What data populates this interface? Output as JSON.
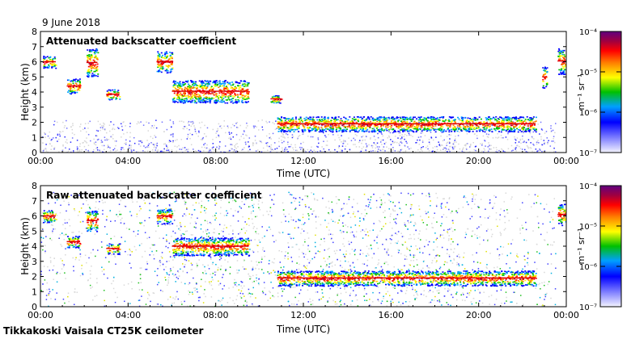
{
  "date_label": "9 June 2018",
  "footer": "Tikkakoski Vaisala CT25K ceilometer",
  "colorbar_unit": "m⁻¹ sr⁻¹",
  "colorbar_ticks": [
    "10⁻⁴",
    "10⁻⁵",
    "10⁻⁶",
    "10⁻⁷"
  ],
  "chart_data": [
    {
      "type": "heatmap",
      "title": "Attenuated backscatter coefficient",
      "xlabel": "Time (UTC)",
      "ylabel": "Height (km)",
      "xlim": [
        0,
        24
      ],
      "ylim": [
        0,
        8
      ],
      "x_ticks": [
        "00:00",
        "04:00",
        "08:00",
        "12:00",
        "16:00",
        "20:00",
        "00:00"
      ],
      "y_ticks": [
        "0",
        "1",
        "2",
        "3",
        "4",
        "5",
        "6",
        "7",
        "8"
      ],
      "colorbar_range": [
        1e-07,
        0.0001
      ],
      "colorbar_scale": "log",
      "layers": [
        {
          "x": [
            0.1,
            0.7
          ],
          "y": [
            5.6,
            6.4
          ]
        },
        {
          "x": [
            1.2,
            1.8
          ],
          "y": [
            3.9,
            4.9
          ]
        },
        {
          "x": [
            2.1,
            2.6
          ],
          "y": [
            5.0,
            6.9
          ]
        },
        {
          "x": [
            3.0,
            3.6
          ],
          "y": [
            3.5,
            4.2
          ]
        },
        {
          "x": [
            5.3,
            6.0
          ],
          "y": [
            5.3,
            6.7
          ]
        },
        {
          "x": [
            6.0,
            9.5
          ],
          "y": [
            3.3,
            4.8
          ]
        },
        {
          "x": [
            10.5,
            11.0
          ],
          "y": [
            3.3,
            3.8
          ]
        },
        {
          "x": [
            10.8,
            22.6
          ],
          "y": [
            1.4,
            2.4
          ]
        },
        {
          "x": [
            22.9,
            23.1
          ],
          "y": [
            4.3,
            5.7
          ]
        },
        {
          "x": [
            23.6,
            24.0
          ],
          "y": [
            5.2,
            6.9
          ]
        }
      ]
    },
    {
      "type": "heatmap",
      "title": "Raw attenuated backscatter coefficient",
      "xlabel": "Time (UTC)",
      "ylabel": "Height (km)",
      "xlim": [
        0,
        24
      ],
      "ylim": [
        0,
        8
      ],
      "x_ticks": [
        "00:00",
        "04:00",
        "08:00",
        "12:00",
        "16:00",
        "20:00",
        "00:00"
      ],
      "y_ticks": [
        "0",
        "1",
        "2",
        "3",
        "4",
        "5",
        "6",
        "7",
        "8"
      ],
      "colorbar_range": [
        1e-07,
        0.0001
      ],
      "colorbar_scale": "log",
      "layers": [
        {
          "x": [
            0.1,
            0.7
          ],
          "y": [
            5.6,
            6.4
          ]
        },
        {
          "x": [
            1.2,
            1.8
          ],
          "y": [
            3.9,
            4.7
          ]
        },
        {
          "x": [
            2.1,
            2.6
          ],
          "y": [
            5.0,
            6.4
          ]
        },
        {
          "x": [
            3.0,
            3.6
          ],
          "y": [
            3.5,
            4.2
          ]
        },
        {
          "x": [
            5.3,
            6.0
          ],
          "y": [
            5.5,
            6.5
          ]
        },
        {
          "x": [
            6.0,
            9.5
          ],
          "y": [
            3.4,
            4.6
          ]
        },
        {
          "x": [
            10.8,
            22.6
          ],
          "y": [
            1.4,
            2.4
          ]
        },
        {
          "x": [
            23.6,
            24.0
          ],
          "y": [
            5.4,
            6.8
          ]
        }
      ]
    }
  ]
}
